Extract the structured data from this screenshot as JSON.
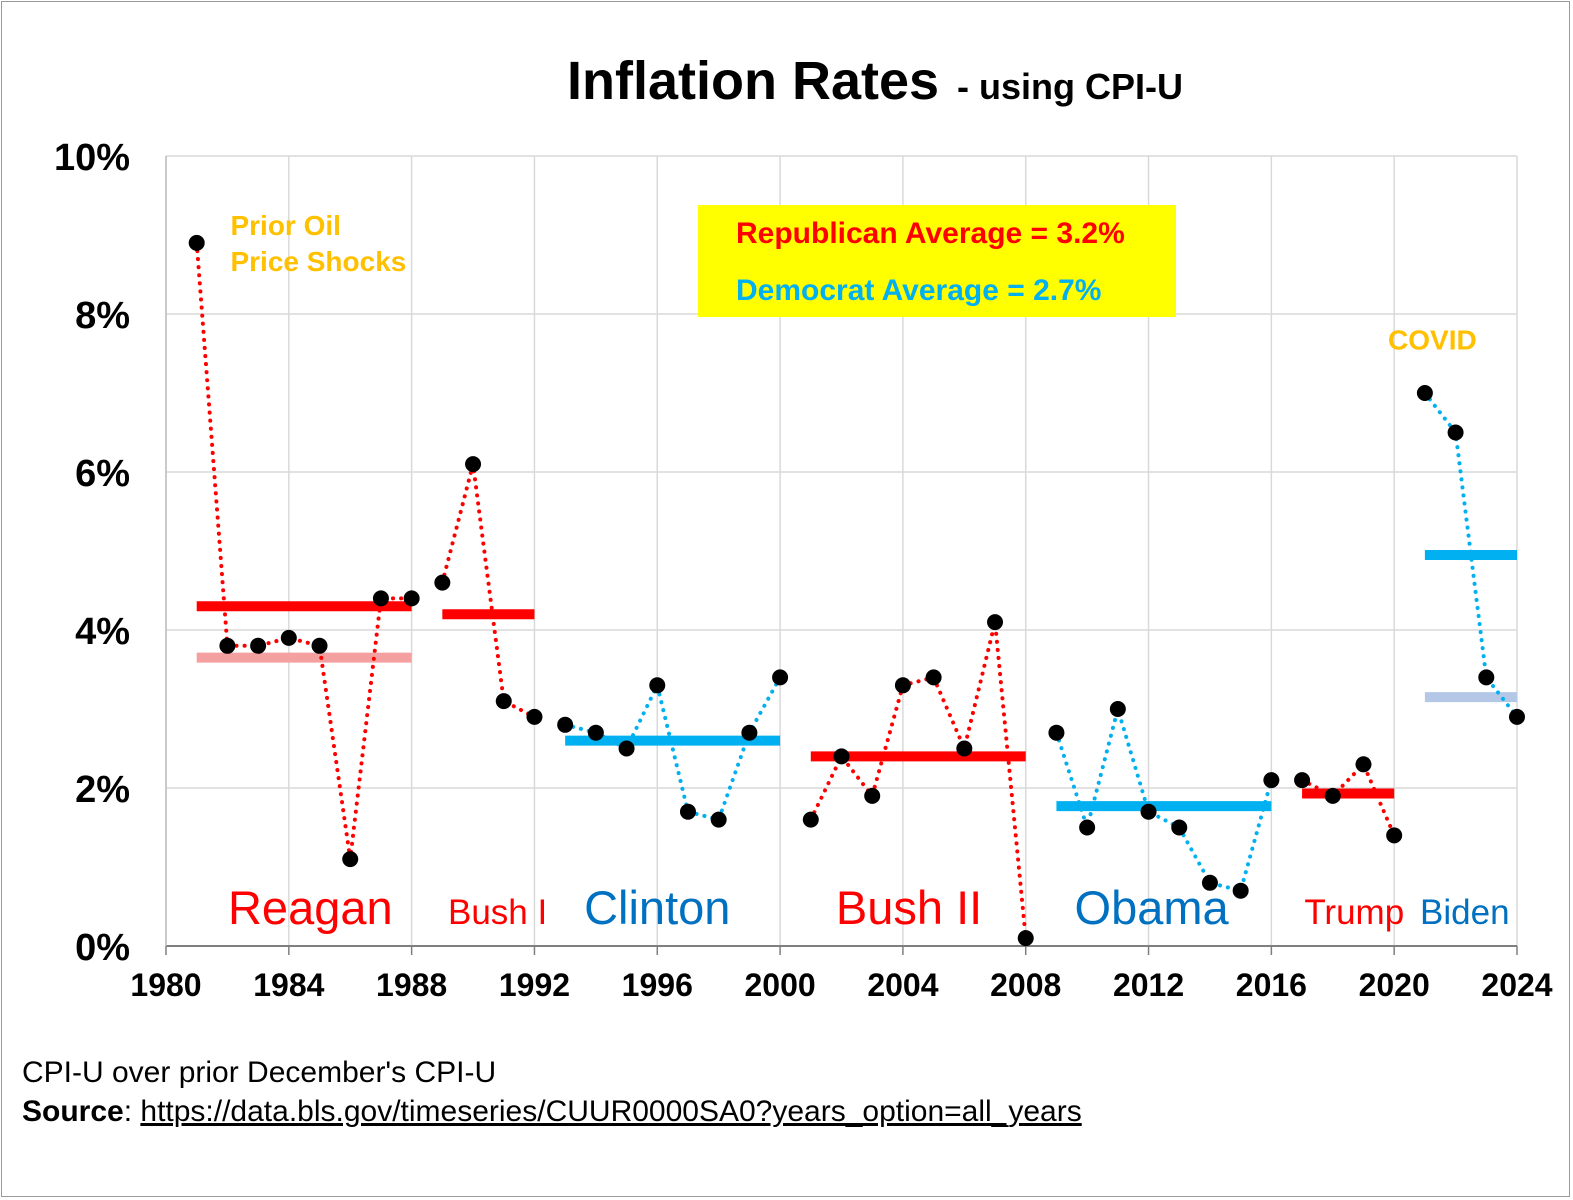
{
  "chart_data": {
    "type": "line",
    "title": "Inflation Rates",
    "subtitle": "- using CPI-U",
    "x_ticks": [
      "1980",
      "1984",
      "1988",
      "1992",
      "1996",
      "2000",
      "2004",
      "2008",
      "2012",
      "2016",
      "2020",
      "2024"
    ],
    "y_ticks": [
      "0%",
      "2%",
      "4%",
      "6%",
      "8%",
      "10%"
    ],
    "xlim": [
      1980,
      2024
    ],
    "ylim": [
      0,
      10
    ],
    "grid": true,
    "series": [
      {
        "party": "Republican",
        "color": "#FF0000",
        "x": [
          1981,
          1982,
          1983,
          1984,
          1985,
          1986,
          1987,
          1988
        ],
        "y": [
          8.9,
          3.8,
          3.8,
          3.9,
          3.8,
          1.1,
          4.4,
          4.4
        ]
      },
      {
        "party": "Republican",
        "color": "#FF0000",
        "x": [
          1989,
          1990,
          1991,
          1992
        ],
        "y": [
          4.6,
          6.1,
          3.1,
          2.9
        ]
      },
      {
        "party": "Democrat",
        "color": "#00B0F0",
        "x": [
          1993,
          1994,
          1995,
          1996,
          1997,
          1998,
          1999,
          2000
        ],
        "y": [
          2.8,
          2.7,
          2.5,
          3.3,
          1.7,
          1.6,
          2.7,
          3.4
        ]
      },
      {
        "party": "Republican",
        "color": "#FF0000",
        "x": [
          2001,
          2002,
          2003,
          2004,
          2005,
          2006,
          2007,
          2008
        ],
        "y": [
          1.6,
          2.4,
          1.9,
          3.3,
          3.4,
          2.5,
          4.1,
          0.1
        ]
      },
      {
        "party": "Democrat",
        "color": "#00B0F0",
        "x": [
          2009,
          2010,
          2011,
          2012,
          2013,
          2014,
          2015,
          2016
        ],
        "y": [
          2.7,
          1.5,
          3.0,
          1.7,
          1.5,
          0.8,
          0.7,
          2.1
        ]
      },
      {
        "party": "Republican",
        "color": "#FF0000",
        "x": [
          2017,
          2018,
          2019,
          2020
        ],
        "y": [
          2.1,
          1.9,
          2.3,
          1.4
        ]
      },
      {
        "party": "Democrat",
        "color": "#00B0F0",
        "x": [
          2021,
          2022,
          2023,
          2024
        ],
        "y": [
          7.0,
          6.5,
          3.4,
          2.9
        ]
      }
    ],
    "averages": [
      {
        "color": "#FF0000",
        "x": [
          1981,
          1988
        ],
        "y": 4.3
      },
      {
        "color": "#F4A0A0",
        "x": [
          1981,
          1988
        ],
        "y": 3.65
      },
      {
        "color": "#FF0000",
        "x": [
          1989,
          1992
        ],
        "y": 4.2
      },
      {
        "color": "#00B0F0",
        "x": [
          1993,
          2000
        ],
        "y": 2.6
      },
      {
        "color": "#FF0000",
        "x": [
          2001,
          2008
        ],
        "y": 2.4
      },
      {
        "color": "#00B0F0",
        "x": [
          2009,
          2016
        ],
        "y": 1.77
      },
      {
        "color": "#FF0000",
        "x": [
          2017,
          2020
        ],
        "y": 1.93
      },
      {
        "color": "#00B0F0",
        "x": [
          2021,
          2024
        ],
        "y": 4.95
      },
      {
        "color": "#B4C7E7",
        "x": [
          2021,
          2024
        ],
        "y": 3.15
      }
    ],
    "presidents": [
      {
        "label": "Reagan",
        "color": "#FF0000",
        "x": 1984.7,
        "size": "large"
      },
      {
        "label": "Bush I",
        "color": "#FF0000",
        "x": 1990.8,
        "size": "small"
      },
      {
        "label": "Clinton",
        "color": "#0070C0",
        "x": 1996.0,
        "size": "large"
      },
      {
        "label": "Bush II",
        "color": "#FF0000",
        "x": 2004.2,
        "size": "large"
      },
      {
        "label": "Obama",
        "color": "#0070C0",
        "x": 2012.1,
        "size": "large"
      },
      {
        "label": "Trump",
        "color": "#FF0000",
        "x": 2018.7,
        "size": "small"
      },
      {
        "label": "Biden",
        "color": "#0070C0",
        "x": 2022.3,
        "size": "small"
      }
    ],
    "annotations": [
      {
        "lines": [
          "Prior Oil",
          "Price Shocks"
        ],
        "color": "#FFC000",
        "x": 1982.1,
        "y": 9.0
      },
      {
        "lines": [
          "COVID"
        ],
        "color": "#FFC000",
        "x": 2019.8,
        "y": 7.55
      }
    ],
    "legend_box": {
      "background": "#FFFF00",
      "republican_text": "Republican Average = 3.2%",
      "republican_color": "#FF0000",
      "democrat_text": "Democrat Average = 2.7%",
      "democrat_color": "#00B0F0"
    }
  },
  "footer": {
    "note": "CPI-U over prior December's CPI-U",
    "source_label": "Source",
    "source_sep": ": ",
    "source_url": "https://data.bls.gov/timeseries/CUUR0000SA0?years_option=all_years"
  }
}
